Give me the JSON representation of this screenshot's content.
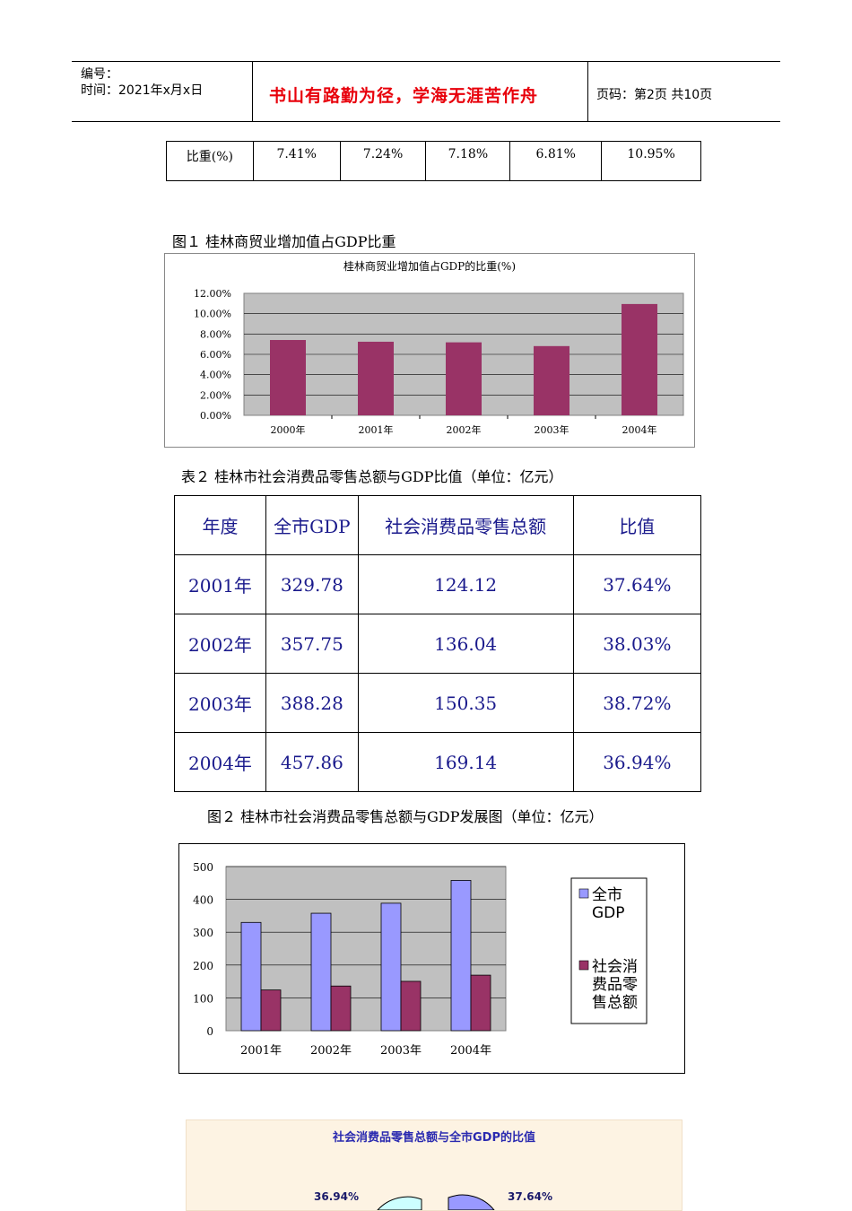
{
  "header": {
    "code_label": "编号：",
    "time_label": "时间：2021年x月x日",
    "motto": "书山有路勤为径，学海无涯苦作舟",
    "page_label": "页码：第2页  共10页"
  },
  "table1": {
    "row_label": "比重(%)",
    "values": [
      "7.41%",
      "7.24%",
      "7.18%",
      "6.81%",
      "10.95%"
    ]
  },
  "figure1": {
    "caption": "图１  桂林商贸业增加值占GDP比重"
  },
  "table2": {
    "caption": "表２    桂林市社会消费品零售总额与GDP比值（单位：亿元）",
    "headers": [
      "年度",
      "全市GDP",
      "社会消费品零售总额",
      "比值"
    ],
    "rows": [
      [
        "2001年",
        "329.78",
        "124.12",
        "37.64%"
      ],
      [
        "2002年",
        "357.75",
        "136.04",
        "38.03%"
      ],
      [
        "2003年",
        "388.28",
        "150.35",
        "38.72%"
      ],
      [
        "2004年",
        "457.86",
        "169.14",
        "36.94%"
      ]
    ]
  },
  "figure2": {
    "caption": "图２    桂林市社会消费品零售总额与GDP发展图（单位：亿元）"
  },
  "figure3": {
    "title": "社会消费品零售总额与全市GDP的比值",
    "labels": [
      "36.94%",
      "37.64%"
    ]
  },
  "chart_data": [
    {
      "type": "bar",
      "title": "桂林商贸业增加值占GDP的比重(%)",
      "categories": [
        "2000年",
        "2001年",
        "2002年",
        "2003年",
        "2004年"
      ],
      "values": [
        7.41,
        7.24,
        7.18,
        6.81,
        10.95
      ],
      "ylim": [
        0,
        12
      ],
      "yticks": [
        "12.00%",
        "10.00%",
        "8.00%",
        "6.00%",
        "4.00%",
        "2.00%",
        "0.00%"
      ],
      "grid": true,
      "bar_color": "#993366",
      "plot_bg": "#c0c0c0"
    },
    {
      "type": "bar",
      "categories": [
        "2001年",
        "2002年",
        "2003年",
        "2004年"
      ],
      "series": [
        {
          "name": "全市GDP",
          "values": [
            329.78,
            357.75,
            388.28,
            457.86
          ],
          "color": "#9999ff"
        },
        {
          "name": "社会消费品零售总额",
          "values": [
            124.12,
            136.04,
            150.35,
            169.14
          ],
          "color": "#993366"
        }
      ],
      "ylim": [
        0,
        500
      ],
      "yticks": [
        "500",
        "400",
        "300",
        "200",
        "100",
        "0"
      ],
      "grid": true,
      "legend": "right",
      "legend_lines": [
        [
          "全市",
          "GDP"
        ],
        [
          "社会消",
          "费品零",
          "售总额"
        ]
      ],
      "plot_bg": "#c0c0c0"
    }
  ]
}
